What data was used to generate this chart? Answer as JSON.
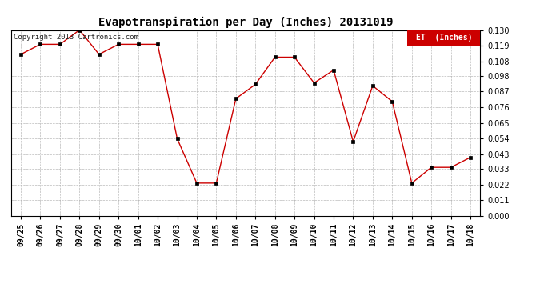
{
  "title": "Evapotranspiration per Day (Inches) 20131019",
  "copyright": "Copyright 2013 Cartronics.com",
  "legend_label": "ET  (Inches)",
  "x_labels": [
    "09/25",
    "09/26",
    "09/27",
    "09/28",
    "09/29",
    "09/30",
    "10/01",
    "10/02",
    "10/03",
    "10/04",
    "10/05",
    "10/06",
    "10/07",
    "10/08",
    "10/09",
    "10/10",
    "10/11",
    "10/12",
    "10/13",
    "10/14",
    "10/15",
    "10/16",
    "10/17",
    "10/18"
  ],
  "y_values": [
    0.113,
    0.12,
    0.12,
    0.13,
    0.113,
    0.12,
    0.12,
    0.12,
    0.054,
    0.023,
    0.023,
    0.082,
    0.092,
    0.111,
    0.111,
    0.093,
    0.102,
    0.052,
    0.091,
    0.08,
    0.023,
    0.034,
    0.034,
    0.041
  ],
  "line_color": "#cc0000",
  "marker_color": "#000000",
  "bg_color": "#ffffff",
  "grid_color": "#aaaaaa",
  "ylim": [
    0.0,
    0.13
  ],
  "yticks": [
    0.0,
    0.011,
    0.022,
    0.033,
    0.043,
    0.054,
    0.065,
    0.076,
    0.087,
    0.098,
    0.108,
    0.119,
    0.13
  ],
  "legend_bg": "#cc0000",
  "legend_text_color": "#ffffff",
  "title_fontsize": 10,
  "tick_fontsize": 7,
  "copyright_fontsize": 6.5
}
